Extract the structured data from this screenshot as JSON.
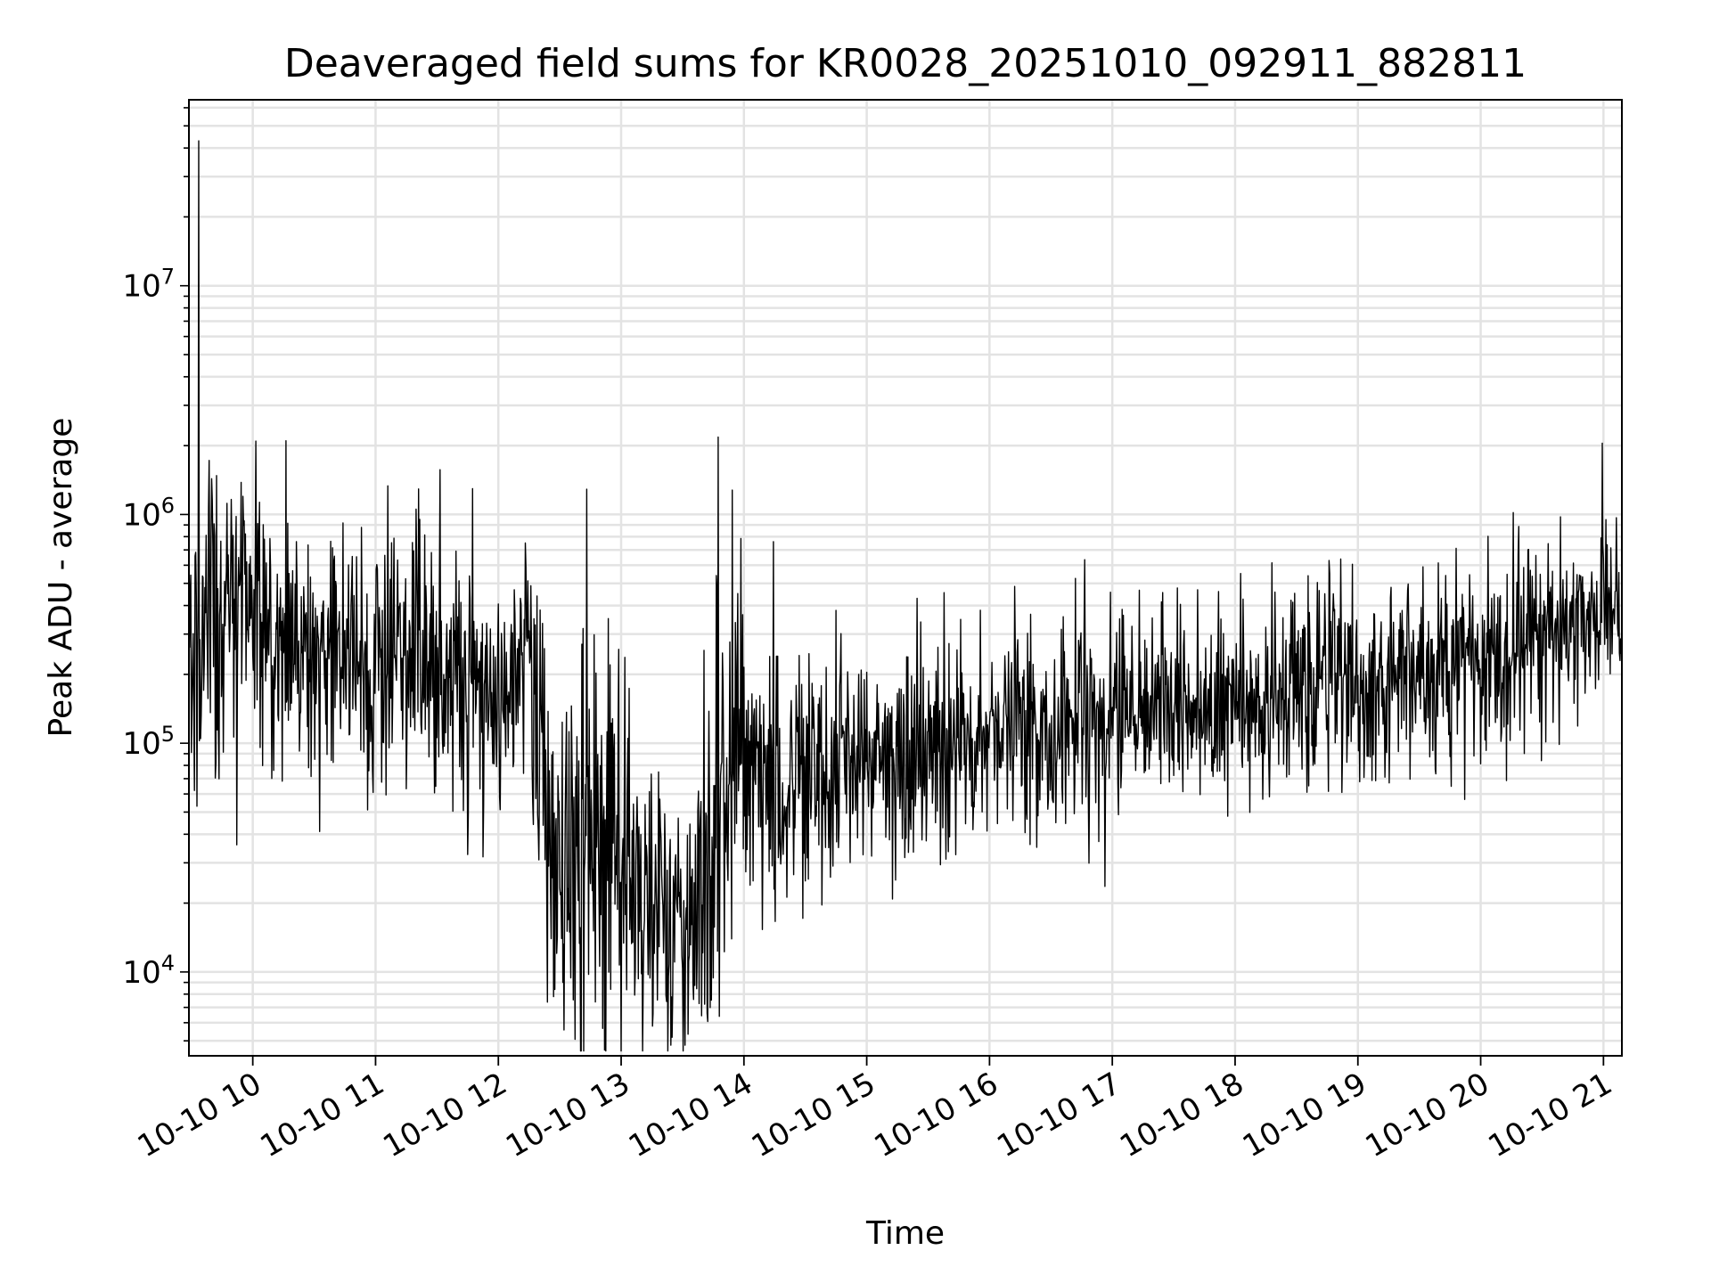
{
  "chart_data": {
    "type": "line",
    "title": "Deaveraged field sums for KR0028_20251010_092911_882811",
    "xlabel": "Time",
    "ylabel": "Peak ADU - average",
    "yscale": "log",
    "ylim": [
      4300,
      65000000
    ],
    "xlim_hours": [
      9.48,
      21.15
    ],
    "grid": true,
    "x_ticks": [
      {
        "hour": 10,
        "label": "10-10 10"
      },
      {
        "hour": 11,
        "label": "10-10 11"
      },
      {
        "hour": 12,
        "label": "10-10 12"
      },
      {
        "hour": 13,
        "label": "10-10 13"
      },
      {
        "hour": 14,
        "label": "10-10 14"
      },
      {
        "hour": 15,
        "label": "10-10 15"
      },
      {
        "hour": 16,
        "label": "10-10 16"
      },
      {
        "hour": 17,
        "label": "10-10 17"
      },
      {
        "hour": 18,
        "label": "10-10 18"
      },
      {
        "hour": 19,
        "label": "10-10 19"
      },
      {
        "hour": 20,
        "label": "10-10 20"
      },
      {
        "hour": 21,
        "label": "10-10 21"
      }
    ],
    "y_ticks": [
      {
        "value": 10000,
        "base": "10",
        "exp": "4"
      },
      {
        "value": 100000,
        "base": "10",
        "exp": "5"
      },
      {
        "value": 1000000,
        "base": "10",
        "exp": "6"
      },
      {
        "value": 10000000,
        "base": "10",
        "exp": "7"
      }
    ],
    "series": [
      {
        "name": "Peak ADU - average",
        "color": "#000000",
        "sampling": "approx. one value every 0.005 h; median trend and spread estimated from the plot",
        "trend": [
          {
            "hour": 9.48,
            "median": 250000,
            "spread": 0.4
          },
          {
            "hour": 9.7,
            "median": 280000,
            "spread": 0.4
          },
          {
            "hour": 9.9,
            "median": 420000,
            "spread": 0.3
          },
          {
            "hour": 10.0,
            "median": 330000,
            "spread": 0.3
          },
          {
            "hour": 10.3,
            "median": 230000,
            "spread": 0.28
          },
          {
            "hour": 10.6,
            "median": 240000,
            "spread": 0.28
          },
          {
            "hour": 11.0,
            "median": 220000,
            "spread": 0.28
          },
          {
            "hour": 11.4,
            "median": 210000,
            "spread": 0.28
          },
          {
            "hour": 11.8,
            "median": 160000,
            "spread": 0.3
          },
          {
            "hour": 12.1,
            "median": 150000,
            "spread": 0.3
          },
          {
            "hour": 12.25,
            "median": 300000,
            "spread": 0.4
          },
          {
            "hour": 12.4,
            "median": 60000,
            "spread": 0.45
          },
          {
            "hour": 12.6,
            "median": 25000,
            "spread": 0.55
          },
          {
            "hour": 12.9,
            "median": 40000,
            "spread": 0.6
          },
          {
            "hour": 13.1,
            "median": 20000,
            "spread": 0.4
          },
          {
            "hour": 13.4,
            "median": 17000,
            "spread": 0.3
          },
          {
            "hour": 13.6,
            "median": 18000,
            "spread": 0.35
          },
          {
            "hour": 13.8,
            "median": 70000,
            "spread": 0.6
          },
          {
            "hour": 14.1,
            "median": 80000,
            "spread": 0.35
          },
          {
            "hour": 14.5,
            "median": 70000,
            "spread": 0.3
          },
          {
            "hour": 15.0,
            "median": 90000,
            "spread": 0.25
          },
          {
            "hour": 15.5,
            "median": 95000,
            "spread": 0.25
          },
          {
            "hour": 16.0,
            "median": 110000,
            "spread": 0.25
          },
          {
            "hour": 17.0,
            "median": 130000,
            "spread": 0.25
          },
          {
            "hour": 18.0,
            "median": 160000,
            "spread": 0.25
          },
          {
            "hour": 19.0,
            "median": 190000,
            "spread": 0.25
          },
          {
            "hour": 20.0,
            "median": 210000,
            "spread": 0.25
          },
          {
            "hour": 20.6,
            "median": 300000,
            "spread": 0.22
          },
          {
            "hour": 21.0,
            "median": 400000,
            "spread": 0.2
          },
          {
            "hour": 21.15,
            "median": 370000,
            "spread": 0.2
          }
        ],
        "spikes": [
          {
            "hour": 9.56,
            "value": 43000000
          },
          {
            "hour": 10.27,
            "value": 2100000
          },
          {
            "hour": 9.92,
            "value": 1200000
          },
          {
            "hour": 12.22,
            "value": 750000
          },
          {
            "hour": 14.24,
            "value": 760000
          },
          {
            "hour": 20.99,
            "value": 2050000
          },
          {
            "hour": 21.02,
            "value": 950000
          },
          {
            "hour": 13.8,
            "value": 6400
          },
          {
            "hour": 13.7,
            "value": 6600
          },
          {
            "hour": 12.45,
            "value": 7800
          }
        ]
      }
    ]
  }
}
